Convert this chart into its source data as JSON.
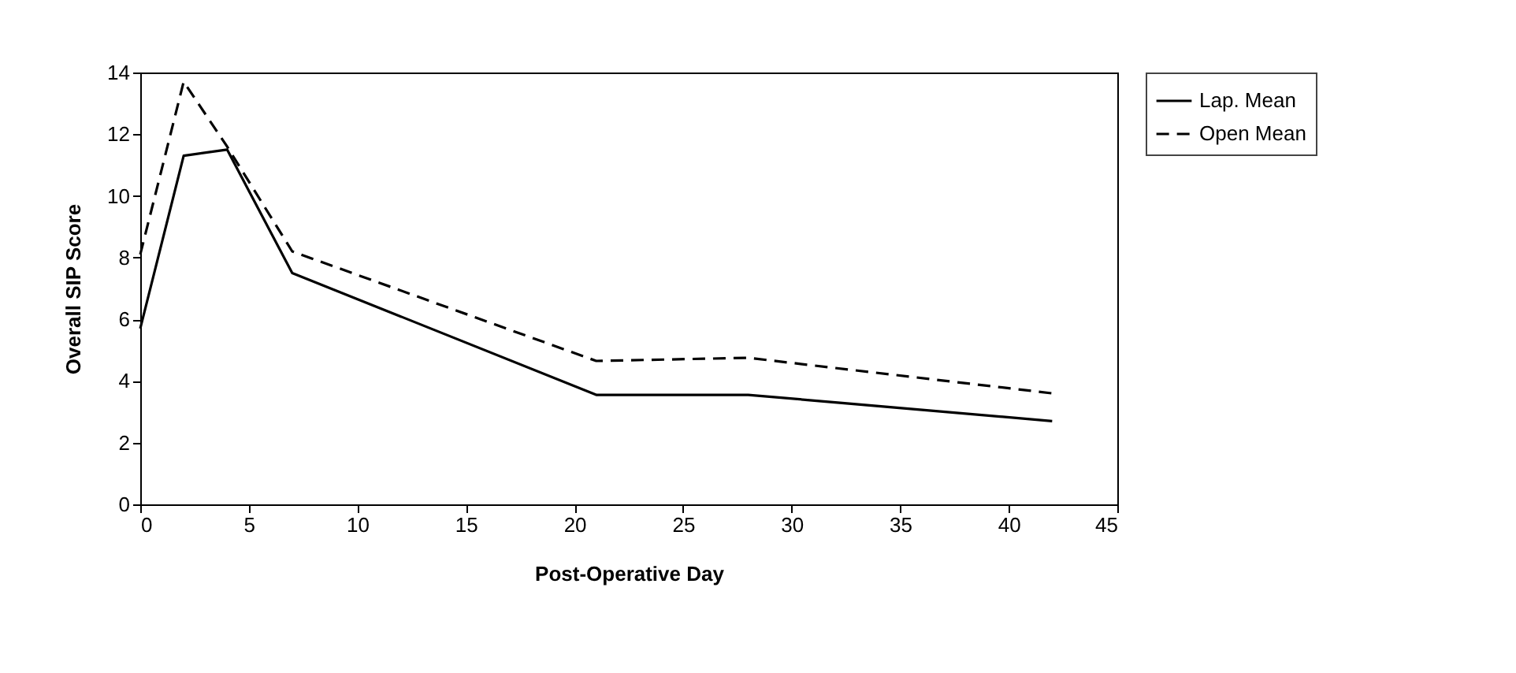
{
  "chart_data": {
    "type": "line",
    "xlabel": "Post-Operative Day",
    "ylabel": "Overall SIP Score",
    "x": [
      0,
      2,
      4,
      7,
      21,
      28,
      42
    ],
    "series": [
      {
        "name": "Lap. Mean",
        "color": "#000000",
        "line_style": "solid",
        "values": [
          5.7,
          11.3,
          11.5,
          7.5,
          3.55,
          3.55,
          2.7
        ]
      },
      {
        "name": "Open Mean",
        "color": "#000000",
        "line_style": "dashed",
        "values": [
          8.1,
          13.7,
          11.6,
          8.2,
          4.65,
          4.75,
          3.6
        ]
      }
    ],
    "xlim": [
      0,
      45
    ],
    "xticks": [
      0,
      5,
      10,
      15,
      20,
      25,
      30,
      35,
      40,
      45
    ],
    "ylim": [
      0,
      14
    ],
    "yticks": [
      0,
      2,
      4,
      6,
      8,
      10,
      12,
      14
    ],
    "grid": false,
    "legend": "right",
    "marker": "none"
  }
}
